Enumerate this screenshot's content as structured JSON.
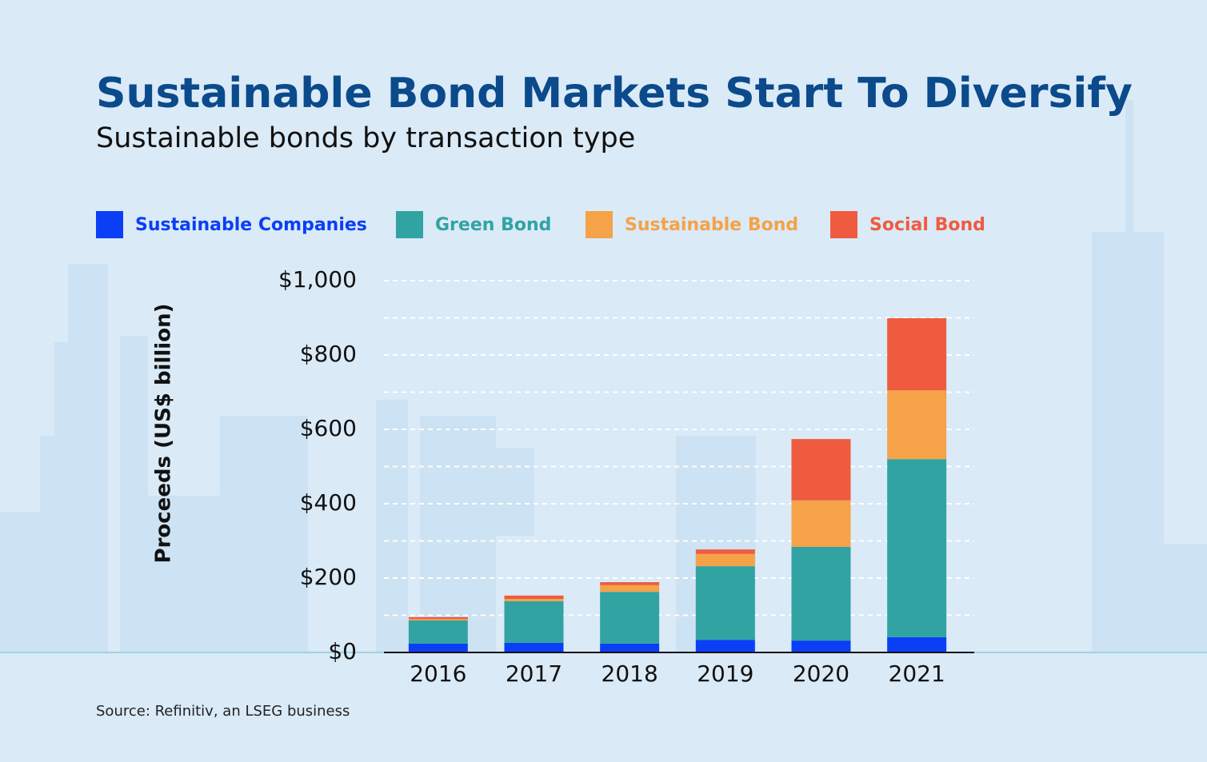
{
  "chart_data": {
    "type": "stacked_bar",
    "title": "Sustainable Bond Markets Start To Diversify",
    "subtitle": "Sustainable bonds by transaction type",
    "y_label": "Proceeds (US$ billion)",
    "source": "Source: Refinitiv, an LSEG business",
    "categories": [
      "2016",
      "2017",
      "2018",
      "2019",
      "2020",
      "2021"
    ],
    "series": [
      {
        "name": "Sustainable Companies",
        "color": "#0a3ff5",
        "values": [
          24,
          26,
          24,
          34,
          32,
          41
        ]
      },
      {
        "name": "Green Bond",
        "color": "#31a3a3",
        "values": [
          62,
          112,
          139,
          198,
          252,
          479
        ]
      },
      {
        "name": "Sustainable Bond",
        "color": "#f5a248",
        "values": [
          4,
          6,
          18,
          33,
          125,
          185
        ]
      },
      {
        "name": "Social Bond",
        "color": "#ef5b3f",
        "values": [
          5,
          9,
          8,
          12,
          165,
          194
        ]
      }
    ],
    "ylim": [
      0,
      1000
    ],
    "yticks": [
      {
        "value": 0,
        "label": "$0"
      },
      {
        "value": 200,
        "label": "$200"
      },
      {
        "value": 400,
        "label": "$400"
      },
      {
        "value": 600,
        "label": "$600"
      },
      {
        "value": 800,
        "label": "$800"
      },
      {
        "value": 1000,
        "label": "$1,000"
      }
    ],
    "minor_yticks": [
      100,
      300,
      500,
      700,
      900
    ],
    "grid": true,
    "legend": "top"
  }
}
